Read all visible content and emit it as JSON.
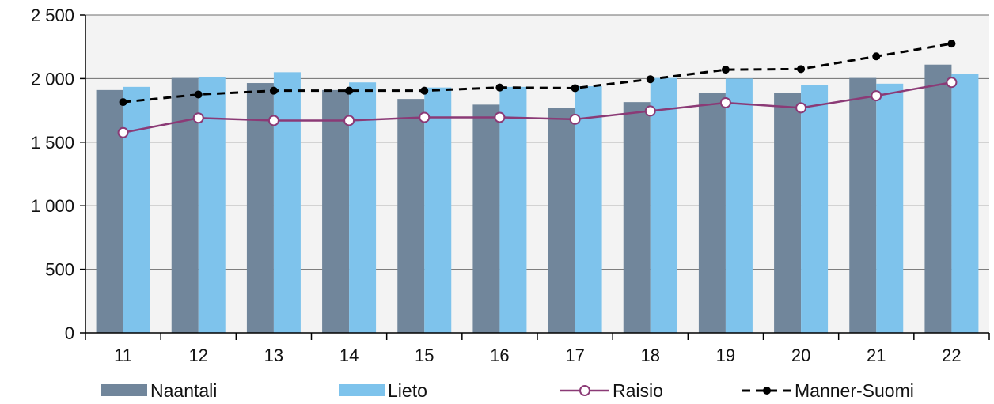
{
  "chart_data": {
    "type": "bar",
    "categories": [
      "11",
      "12",
      "13",
      "14",
      "15",
      "16",
      "17",
      "18",
      "19",
      "20",
      "21",
      "22"
    ],
    "ylim": [
      0,
      2500
    ],
    "yticks": [
      0,
      500,
      1000,
      1500,
      2000,
      2500
    ],
    "ytick_labels": [
      "0",
      "500",
      "1 000",
      "1 500",
      "2 000",
      "2 500"
    ],
    "grid": true,
    "legend_position": "bottom",
    "series": [
      {
        "name": "Naantali",
        "kind": "bar",
        "color": "#71869b",
        "values": [
          1910,
          2005,
          1965,
          1910,
          1840,
          1795,
          1770,
          1815,
          1890,
          1890,
          2005,
          2110
        ]
      },
      {
        "name": "Lieto",
        "kind": "bar",
        "color": "#7ec3ec",
        "values": [
          1935,
          2015,
          2050,
          1970,
          1930,
          1935,
          1940,
          2005,
          2000,
          1950,
          1960,
          2035
        ]
      },
      {
        "name": "Raisio",
        "kind": "line",
        "color": "#8b3a76",
        "marker": "open-circle",
        "values": [
          1575,
          1690,
          1670,
          1670,
          1695,
          1695,
          1680,
          1745,
          1810,
          1770,
          1865,
          1970
        ]
      },
      {
        "name": "Manner-Suomi",
        "kind": "line",
        "color": "#000000",
        "marker": "filled-circle",
        "dashed": true,
        "values": [
          1815,
          1875,
          1905,
          1905,
          1905,
          1930,
          1925,
          1995,
          2070,
          2075,
          2175,
          2275
        ]
      }
    ]
  }
}
